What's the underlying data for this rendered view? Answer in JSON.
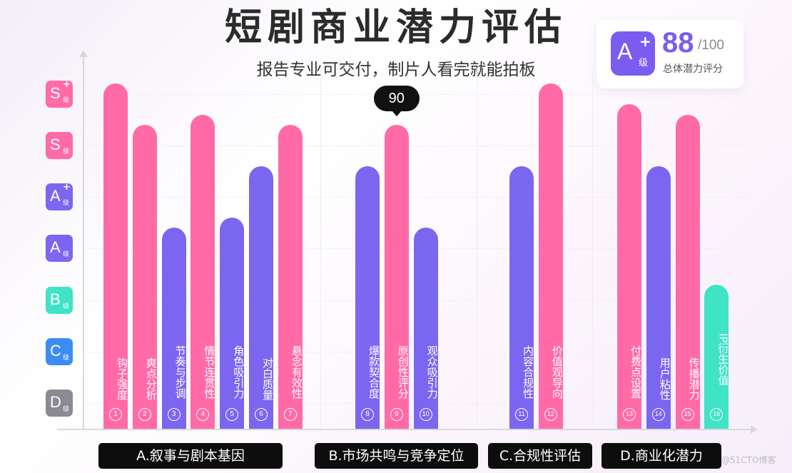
{
  "title": "短剧商业潜力评估",
  "subtitle": "报告专业可交付，制片人看完就能拍板",
  "score_card": {
    "grade": "A",
    "grade_plus": "+",
    "grade_suffix": "级",
    "score": "88",
    "max": "/100",
    "label": "总体潜力评分"
  },
  "tooltip": {
    "text": "90"
  },
  "watermark": "@51CTO博客",
  "colors": {
    "pink": "#ff6aa7",
    "purple": "#7b66ef",
    "teal": "#3fe3c6",
    "blue": "#3d8cf2",
    "gray": "#8a8a93",
    "accent": "#7b5cf0"
  },
  "chart_data": {
    "type": "bar",
    "title": "短剧商业潜力评估",
    "subtitle": "报告专业可交付，制片人看完就能拍板",
    "grade_levels": [
      {
        "grade": "D",
        "plus": "",
        "suffix": "级",
        "color": "#8a8a93"
      },
      {
        "grade": "C",
        "plus": "",
        "suffix": "级",
        "color": "#3d8cf2"
      },
      {
        "grade": "B",
        "plus": "",
        "suffix": "级",
        "color": "#3fe3c6"
      },
      {
        "grade": "A",
        "plus": "",
        "suffix": "级",
        "color": "#7b66ef"
      },
      {
        "grade": "A",
        "plus": "+",
        "suffix": "级",
        "color": "#7b66ef"
      },
      {
        "grade": "S",
        "plus": "",
        "suffix": "级",
        "color": "#ff6aa7"
      },
      {
        "grade": "S",
        "plus": "+",
        "suffix": "级",
        "color": "#ff6aa7"
      }
    ],
    "ylim": [
      0,
      7
    ],
    "grid": true,
    "groups": [
      {
        "name": "A.叙事与剧本基因"
      },
      {
        "name": "B.市场共鸣与竞争定位"
      },
      {
        "name": "C.合规性评估"
      },
      {
        "name": "D.商业化潜力"
      }
    ],
    "bars": [
      {
        "label": "钩子强度",
        "num": "1",
        "group": 0,
        "value": 6.7,
        "color": "#ff6aa7"
      },
      {
        "label": "爽点分析",
        "num": "2",
        "group": 0,
        "value": 5.9,
        "color": "#ff6aa7"
      },
      {
        "label": "节奏与步调",
        "num": "3",
        "group": 0,
        "value": 3.9,
        "color": "#7b66ef"
      },
      {
        "label": "情节连贯性",
        "num": "4",
        "group": 0,
        "value": 6.1,
        "color": "#ff6aa7"
      },
      {
        "label": "角色吸引力",
        "num": "5",
        "group": 0,
        "value": 4.1,
        "color": "#7b66ef"
      },
      {
        "label": "对白质量",
        "num": "6",
        "group": 0,
        "value": 5.1,
        "color": "#7b66ef"
      },
      {
        "label": "悬念有效性",
        "num": "7",
        "group": 0,
        "value": 5.9,
        "color": "#ff6aa7"
      },
      {
        "label": "爆款契合度",
        "num": "8",
        "group": 1,
        "value": 5.1,
        "color": "#7b66ef"
      },
      {
        "label": "原创性评分",
        "num": "9",
        "group": 1,
        "value": 5.9,
        "color": "#ff6aa7",
        "annotation": "90"
      },
      {
        "label": "观众吸引力",
        "num": "10",
        "group": 1,
        "value": 3.9,
        "color": "#7b66ef"
      },
      {
        "label": "内容合规性",
        "num": "11",
        "group": 2,
        "value": 5.1,
        "color": "#7b66ef"
      },
      {
        "label": "价值观导向",
        "num": "12",
        "group": 2,
        "value": 6.7,
        "color": "#ff6aa7"
      },
      {
        "label": "付费点设置",
        "num": "13",
        "group": 3,
        "value": 6.3,
        "color": "#ff6aa7"
      },
      {
        "label": "用户粘性",
        "num": "14",
        "group": 3,
        "value": 5.1,
        "color": "#7b66ef"
      },
      {
        "label": "传播潜力",
        "num": "15",
        "group": 3,
        "value": 6.1,
        "color": "#ff6aa7"
      },
      {
        "label": "IP衍生价值",
        "num": "16",
        "group": 3,
        "value": 2.8,
        "color": "#3fe3c6"
      }
    ]
  }
}
